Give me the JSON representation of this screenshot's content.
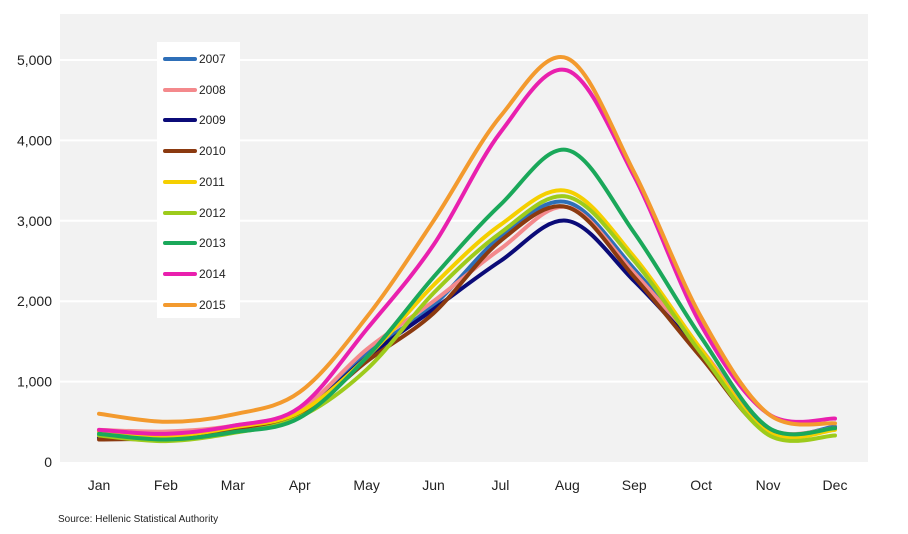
{
  "chart_data": {
    "type": "line",
    "title": "",
    "xlabel": "",
    "ylabel": "",
    "categories": [
      "Jan",
      "Feb",
      "Mar",
      "Apr",
      "May",
      "Jun",
      "Jul",
      "Aug",
      "Sep",
      "Oct",
      "Nov",
      "Dec"
    ],
    "ylim": [
      0,
      5000
    ],
    "yticks": [
      0,
      1000,
      2000,
      3000,
      4000,
      5000
    ],
    "ytick_labels": [
      "0",
      "1,000",
      "2,000",
      "3,000",
      "4,000",
      "5,000"
    ],
    "grid": true,
    "smooth": true,
    "legend_position": "top-left",
    "series": [
      {
        "name": "2007",
        "color": "#2e6fb8",
        "values": [
          380,
          330,
          420,
          620,
          1350,
          1950,
          2800,
          3230,
          2400,
          1400,
          400,
          440
        ]
      },
      {
        "name": "2008",
        "color": "#f4898c",
        "values": [
          400,
          380,
          450,
          650,
          1400,
          2000,
          2650,
          3170,
          2350,
          1400,
          420,
          420
        ]
      },
      {
        "name": "2009",
        "color": "#0b0b78",
        "values": [
          300,
          300,
          400,
          600,
          1300,
          1900,
          2500,
          3000,
          2250,
          1350,
          380,
          410
        ]
      },
      {
        "name": "2010",
        "color": "#8b3a10",
        "values": [
          280,
          300,
          400,
          580,
          1250,
          1850,
          2750,
          3170,
          2300,
          1300,
          360,
          420
        ]
      },
      {
        "name": "2011",
        "color": "#f5cf00",
        "values": [
          380,
          320,
          430,
          620,
          1300,
          2200,
          2950,
          3370,
          2550,
          1400,
          370,
          400
        ]
      },
      {
        "name": "2012",
        "color": "#9dcb1c",
        "values": [
          330,
          260,
          360,
          560,
          1150,
          2100,
          2850,
          3300,
          2500,
          1350,
          340,
          330
        ]
      },
      {
        "name": "2013",
        "color": "#1aa85a",
        "values": [
          350,
          280,
          370,
          550,
          1300,
          2300,
          3200,
          3880,
          2850,
          1550,
          430,
          420
        ]
      },
      {
        "name": "2014",
        "color": "#e920ae",
        "values": [
          400,
          350,
          450,
          680,
          1650,
          2700,
          4100,
          4870,
          3550,
          1700,
          600,
          540
        ]
      },
      {
        "name": "2015",
        "color": "#f39a2e",
        "values": [
          600,
          500,
          590,
          870,
          1800,
          3000,
          4300,
          5020,
          3600,
          1800,
          600,
          480
        ]
      }
    ]
  },
  "source": "Source: Hellenic Statistical Authority"
}
